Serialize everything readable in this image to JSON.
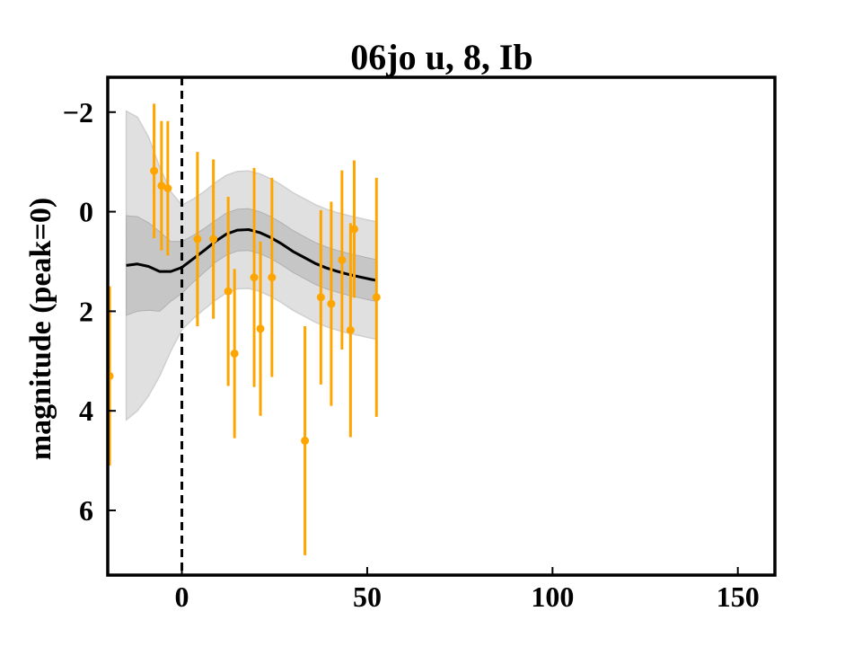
{
  "chart_data": {
    "type": "scatter",
    "title": "06jo u, 8, Ib",
    "xlabel": "",
    "ylabel": "magnitude (peak=0)",
    "xlim": [
      -20,
      160
    ],
    "ylim": [
      7.3,
      -2.7
    ],
    "y_inverted": true,
    "xticks": [
      0,
      50,
      100,
      150
    ],
    "xtick_labels": [
      "0",
      "50",
      "100",
      "150"
    ],
    "yticks": [
      -2,
      0,
      2,
      4,
      6
    ],
    "ytick_labels": [
      "−2",
      "0",
      "2",
      "4",
      "6"
    ],
    "reference_line": {
      "x": 0,
      "style": "dashed",
      "color": "#000000"
    },
    "colors": {
      "points": "#FFA500",
      "model_line": "#000000",
      "inner_band": "#bfbfbf",
      "outer_band": "#e0e0e0"
    },
    "observations": {
      "x": [
        -19.5,
        -7.5,
        -5.5,
        -3.8,
        4.2,
        8.5,
        12.5,
        14.2,
        19.5,
        21.2,
        24.3,
        33.2,
        37.5,
        40.3,
        43.2,
        45.5,
        46.5,
        52.5
      ],
      "y": [
        3.3,
        -0.82,
        -0.52,
        -0.47,
        0.55,
        0.55,
        1.6,
        2.85,
        1.32,
        2.35,
        1.32,
        4.6,
        1.72,
        1.85,
        0.97,
        2.38,
        0.35,
        1.72
      ],
      "yerr": [
        1.8,
        1.35,
        1.3,
        1.35,
        1.75,
        1.6,
        1.9,
        1.7,
        2.2,
        1.75,
        2.0,
        2.3,
        1.75,
        2.05,
        1.8,
        2.15,
        1.38,
        2.4
      ]
    },
    "model": {
      "x": [
        -15,
        -12,
        -9,
        -6,
        -3,
        0,
        3,
        6,
        9,
        12,
        15,
        18,
        21,
        24,
        27,
        30,
        33,
        36,
        39,
        42,
        45,
        48,
        51,
        52.5
      ],
      "y": [
        1.08,
        1.05,
        1.1,
        1.2,
        1.2,
        1.12,
        0.95,
        0.78,
        0.6,
        0.45,
        0.37,
        0.36,
        0.42,
        0.52,
        0.65,
        0.8,
        0.92,
        1.04,
        1.13,
        1.2,
        1.26,
        1.31,
        1.36,
        1.38
      ],
      "inner_band_halfwidth": [
        1.0,
        0.95,
        0.88,
        0.8,
        0.6,
        0.52,
        0.47,
        0.44,
        0.42,
        0.42,
        0.42,
        0.42,
        0.42,
        0.42,
        0.42,
        0.42,
        0.42,
        0.42,
        0.42,
        0.42,
        0.42,
        0.42,
        0.42,
        0.42
      ],
      "outer_band_halfwidth": [
        3.1,
        2.95,
        2.6,
        2.1,
        1.6,
        1.25,
        1.2,
        1.18,
        1.18,
        1.18,
        1.18,
        1.18,
        1.18,
        1.18,
        1.18,
        1.18,
        1.18,
        1.18,
        1.18,
        1.18,
        1.18,
        1.18,
        1.18,
        1.18
      ]
    }
  }
}
